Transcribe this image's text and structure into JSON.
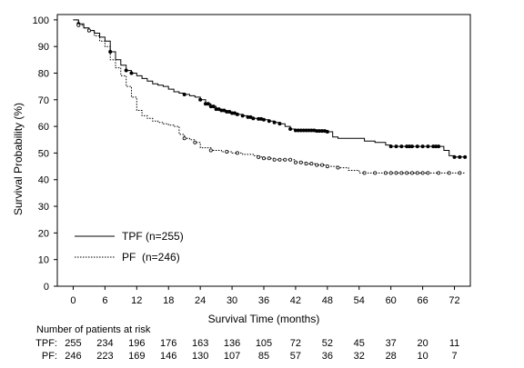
{
  "chart_data": {
    "type": "line",
    "title": "",
    "xlabel": "Survival Time (months)",
    "ylabel": "Survival Probability (%)",
    "xlim": [
      -3,
      75
    ],
    "ylim": [
      0,
      102
    ],
    "xticks": [
      0,
      6,
      12,
      18,
      24,
      30,
      36,
      42,
      48,
      54,
      60,
      66,
      72
    ],
    "yticks": [
      0,
      10,
      20,
      30,
      40,
      50,
      60,
      70,
      80,
      90,
      100
    ],
    "grid": false,
    "legend_position": "lower-left",
    "series": [
      {
        "name": "TPF (n=255)",
        "line_style": "solid",
        "color": "#000000",
        "points": [
          [
            0,
            100
          ],
          [
            1,
            98.5
          ],
          [
            2,
            97
          ],
          [
            3,
            96
          ],
          [
            4,
            95
          ],
          [
            5,
            93.5
          ],
          [
            6,
            92
          ],
          [
            7,
            88
          ],
          [
            8,
            85
          ],
          [
            9,
            83
          ],
          [
            10,
            81
          ],
          [
            11,
            80
          ],
          [
            12,
            79
          ],
          [
            13,
            78
          ],
          [
            14,
            77
          ],
          [
            15,
            76
          ],
          [
            16,
            75.5
          ],
          [
            17,
            75
          ],
          [
            18,
            74
          ],
          [
            19,
            73
          ],
          [
            20,
            72.5
          ],
          [
            21,
            72
          ],
          [
            22,
            71.5
          ],
          [
            23,
            71
          ],
          [
            24,
            70
          ],
          [
            25,
            68.5
          ],
          [
            26,
            67.5
          ],
          [
            27,
            66.5
          ],
          [
            28,
            66
          ],
          [
            29,
            65.5
          ],
          [
            30,
            65
          ],
          [
            31,
            64.5
          ],
          [
            32,
            64
          ],
          [
            33,
            63.5
          ],
          [
            34,
            63
          ],
          [
            35,
            62.8
          ],
          [
            36,
            62.5
          ],
          [
            37,
            62
          ],
          [
            38,
            61.5
          ],
          [
            39,
            61
          ],
          [
            40,
            60
          ],
          [
            41,
            59
          ],
          [
            42,
            58.5
          ],
          [
            44,
            58.5
          ],
          [
            46,
            58.3
          ],
          [
            48,
            58
          ],
          [
            49,
            56
          ],
          [
            50,
            55.5
          ],
          [
            54,
            55.5
          ],
          [
            55,
            54.5
          ],
          [
            57,
            54
          ],
          [
            59,
            53
          ],
          [
            60,
            52.5
          ],
          [
            64,
            52.5
          ],
          [
            66,
            52.5
          ],
          [
            69,
            52.5
          ],
          [
            70,
            51
          ],
          [
            71,
            49
          ],
          [
            72,
            48.5
          ],
          [
            74,
            48.5
          ]
        ]
      },
      {
        "name": "PF  (n=246)",
        "line_style": "dotted",
        "color": "#000000",
        "points": [
          [
            0,
            100
          ],
          [
            1,
            98
          ],
          [
            2,
            97
          ],
          [
            3,
            96
          ],
          [
            4,
            94
          ],
          [
            5,
            92
          ],
          [
            6,
            90
          ],
          [
            7,
            85
          ],
          [
            8,
            82
          ],
          [
            9,
            79
          ],
          [
            10,
            75
          ],
          [
            11,
            71
          ],
          [
            12,
            66
          ],
          [
            13,
            64
          ],
          [
            14,
            63
          ],
          [
            15,
            62
          ],
          [
            16,
            61.5
          ],
          [
            17,
            61
          ],
          [
            18,
            60.5
          ],
          [
            19,
            60
          ],
          [
            20,
            57
          ],
          [
            21,
            55.5
          ],
          [
            22,
            55
          ],
          [
            23,
            54
          ],
          [
            24,
            52
          ],
          [
            26,
            51
          ],
          [
            28,
            50.5
          ],
          [
            30,
            50
          ],
          [
            32,
            49.5
          ],
          [
            34,
            49
          ],
          [
            35,
            48.5
          ],
          [
            36,
            48
          ],
          [
            38,
            47.5
          ],
          [
            40,
            47.5
          ],
          [
            42,
            46.5
          ],
          [
            44,
            46
          ],
          [
            46,
            45.5
          ],
          [
            48,
            45
          ],
          [
            50,
            44.5
          ],
          [
            52,
            43.5
          ],
          [
            54,
            42.5
          ],
          [
            56,
            42.5
          ],
          [
            60,
            42.5
          ],
          [
            64,
            42.5
          ],
          [
            66,
            42.5
          ],
          [
            70,
            42.5
          ],
          [
            74,
            42.5
          ]
        ]
      }
    ],
    "censor_marks": {
      "TPF (n=255)": [
        1,
        3,
        7,
        10,
        11,
        21,
        24,
        25,
        25.5,
        26,
        26.5,
        27,
        27.5,
        28,
        28.5,
        29,
        29.5,
        30,
        30.5,
        31,
        32,
        33,
        33.5,
        34,
        35,
        35.5,
        36,
        37,
        38,
        39,
        41,
        42,
        42.5,
        43,
        43.5,
        44,
        44.5,
        45,
        45.5,
        46,
        46.5,
        47,
        47.5,
        48,
        60,
        61,
        62,
        63,
        63.5,
        64,
        65,
        66,
        67,
        68,
        68.5,
        69,
        72,
        73,
        74
      ],
      "PF  (n=246)": [
        1,
        3,
        21,
        23,
        26,
        29,
        31,
        35,
        36,
        37,
        38,
        39,
        40,
        41,
        42,
        43,
        44,
        45,
        46,
        47,
        48,
        50,
        55,
        57,
        59,
        60,
        61,
        62,
        63,
        64,
        65,
        66,
        67,
        69,
        71,
        73
      ]
    },
    "legend": {
      "entries": [
        "TPF (n=255)",
        "PF  (n=246)"
      ]
    },
    "risk_table": {
      "title": "Number of patients at risk",
      "rows": [
        {
          "label": "TPF:",
          "values": [
            255,
            234,
            196,
            176,
            163,
            136,
            105,
            72,
            52,
            45,
            37,
            20,
            11
          ]
        },
        {
          "label": "PF:",
          "values": [
            246,
            223,
            169,
            146,
            130,
            107,
            85,
            57,
            36,
            32,
            28,
            10,
            7
          ]
        }
      ]
    }
  }
}
